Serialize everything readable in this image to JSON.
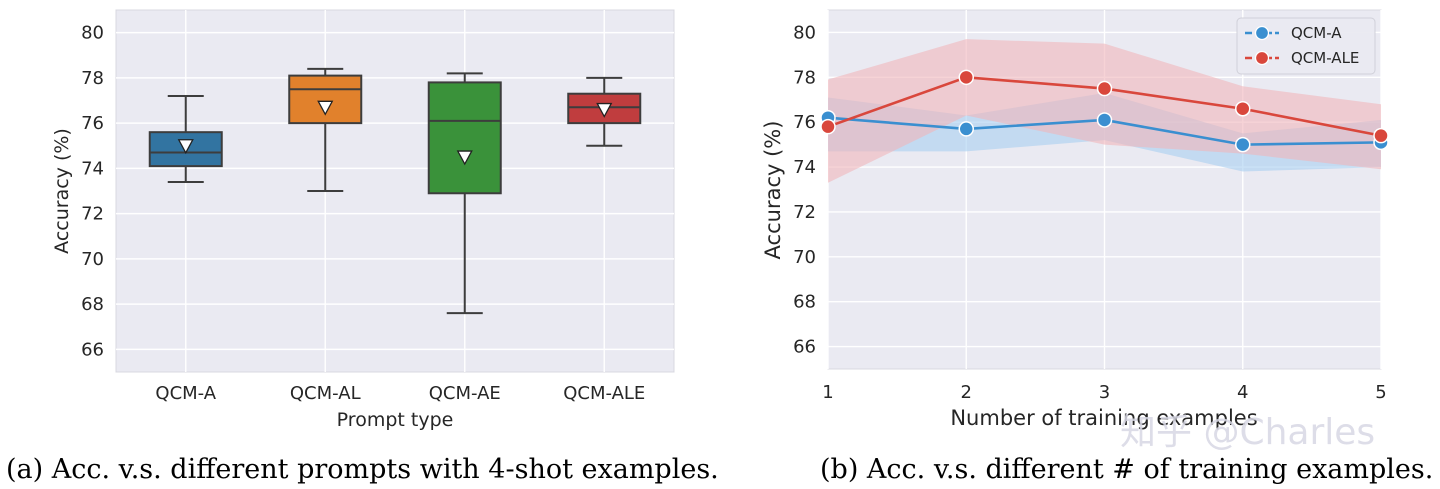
{
  "chart_data": [
    {
      "type": "box",
      "ylabel": "Accuracy (%)",
      "xlabel": "Prompt type",
      "ylim": [
        65,
        81
      ],
      "yticks": [
        66,
        68,
        70,
        72,
        74,
        76,
        78,
        80
      ],
      "ytick_labels": [
        "66",
        "68",
        "70",
        "72",
        "74",
        "76",
        "78",
        "80"
      ],
      "grid": true,
      "categories": [
        "QCM-A",
        "QCM-AL",
        "QCM-AE",
        "QCM-ALE"
      ],
      "boxes": [
        {
          "name": "QCM-A",
          "whislo": 73.4,
          "q1": 74.1,
          "med": 74.7,
          "q3": 75.6,
          "whishi": 77.2,
          "mean": 75.0,
          "color": "#3274a1"
        },
        {
          "name": "QCM-AL",
          "whislo": 73.0,
          "q1": 76.0,
          "med": 77.5,
          "q3": 78.1,
          "whishi": 78.4,
          "mean": 76.7,
          "color": "#e1812c"
        },
        {
          "name": "QCM-AE",
          "whislo": 67.6,
          "q1": 72.9,
          "med": 76.1,
          "q3": 77.8,
          "whishi": 78.2,
          "mean": 74.5,
          "color": "#3a923a"
        },
        {
          "name": "QCM-ALE",
          "whislo": 75.0,
          "q1": 76.0,
          "med": 76.7,
          "q3": 77.3,
          "whishi": 78.0,
          "mean": 76.6,
          "color": "#c03d3e"
        }
      ],
      "caption": "(a) Acc. v.s. different prompts with 4-shot examples."
    },
    {
      "type": "line",
      "ylabel": "Accuracy (%)",
      "xlabel": "Number of training examples",
      "xlim": [
        1,
        5
      ],
      "ylim": [
        65,
        81
      ],
      "x": [
        1,
        2,
        3,
        4,
        5
      ],
      "xtick_labels": [
        "1",
        "2",
        "3",
        "4",
        "5"
      ],
      "yticks": [
        66,
        68,
        70,
        72,
        74,
        76,
        78,
        80
      ],
      "ytick_labels": [
        "66",
        "68",
        "70",
        "72",
        "74",
        "76",
        "78",
        "80"
      ],
      "grid": true,
      "legend": "top-right",
      "series": [
        {
          "name": "QCM-A",
          "values": [
            76.2,
            75.7,
            76.1,
            75.0,
            75.1
          ],
          "lower": [
            74.7,
            74.7,
            75.2,
            73.8,
            74.0
          ],
          "upper": [
            77.1,
            76.3,
            77.3,
            75.5,
            76.1
          ],
          "color": "#3a8fd0",
          "band": "#a9cff0"
        },
        {
          "name": "QCM-ALE",
          "values": [
            75.8,
            78.0,
            77.5,
            76.6,
            75.4
          ],
          "lower": [
            73.3,
            76.3,
            75.0,
            74.6,
            73.9
          ],
          "upper": [
            77.9,
            79.7,
            79.5,
            77.6,
            76.8
          ],
          "color": "#d9473c",
          "band": "#f0b6ba"
        }
      ],
      "caption": "(b) Acc. v.s. different # of training examples."
    }
  ],
  "watermark": "知乎 @Charles"
}
